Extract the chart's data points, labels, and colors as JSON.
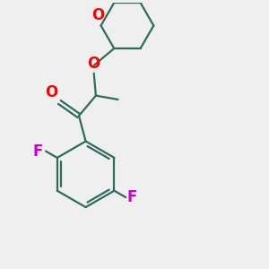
{
  "bg_color": "#efefef",
  "bond_color": "#2d6b5e",
  "o_color": "#ff0000",
  "f_color": "#cc00cc",
  "line_width": 1.6,
  "font_size": 11,
  "fig_width": 3.0,
  "fig_height": 3.0,
  "dpi": 100,
  "xlim": [
    0,
    10
  ],
  "ylim": [
    0,
    10
  ]
}
